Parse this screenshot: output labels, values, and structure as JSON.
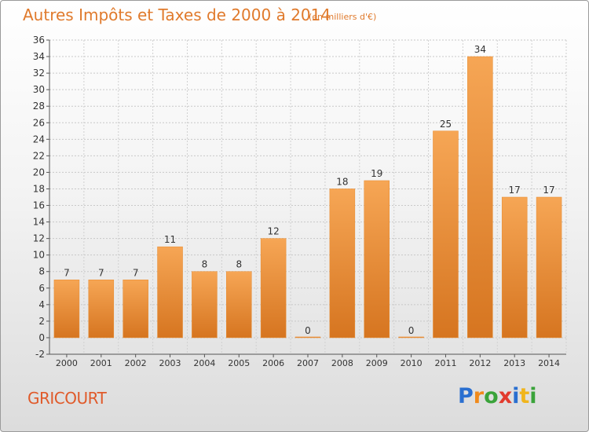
{
  "header": {
    "title": "Autres Impôts et Taxes de 2000 à 2014",
    "subtitle": "(en milliers d'€)"
  },
  "footer": {
    "place": "GRICOURT",
    "logo_letters": [
      "P",
      "r",
      "o",
      "x",
      "i",
      "t",
      "i"
    ],
    "logo_colors": [
      "#2a6fd0",
      "#f08a1c",
      "#3aa33a",
      "#e23b2e",
      "#2a6fd0",
      "#f0b51c",
      "#3aa33a"
    ]
  },
  "colors": {
    "bar_top": "#f6a655",
    "bar_bottom": "#d67520",
    "bar_edge": "#e88a2c",
    "title": "#e07a2c"
  },
  "chart_data": {
    "type": "bar",
    "title": "Autres Impôts et Taxes de 2000 à 2014",
    "subtitle": "(en milliers d'€)",
    "categories": [
      "2000",
      "2001",
      "2002",
      "2003",
      "2004",
      "2005",
      "2006",
      "2007",
      "2008",
      "2009",
      "2010",
      "2011",
      "2012",
      "2013",
      "2014"
    ],
    "values": [
      7,
      7,
      7,
      11,
      8,
      8,
      12,
      0,
      18,
      19,
      0,
      25,
      34,
      17,
      17
    ],
    "ylim": [
      -2,
      36
    ],
    "yticks": [
      -2,
      0,
      2,
      4,
      6,
      8,
      10,
      12,
      14,
      16,
      18,
      20,
      22,
      24,
      26,
      28,
      30,
      32,
      34,
      36
    ],
    "grid": true,
    "xlabel": "",
    "ylabel": ""
  }
}
